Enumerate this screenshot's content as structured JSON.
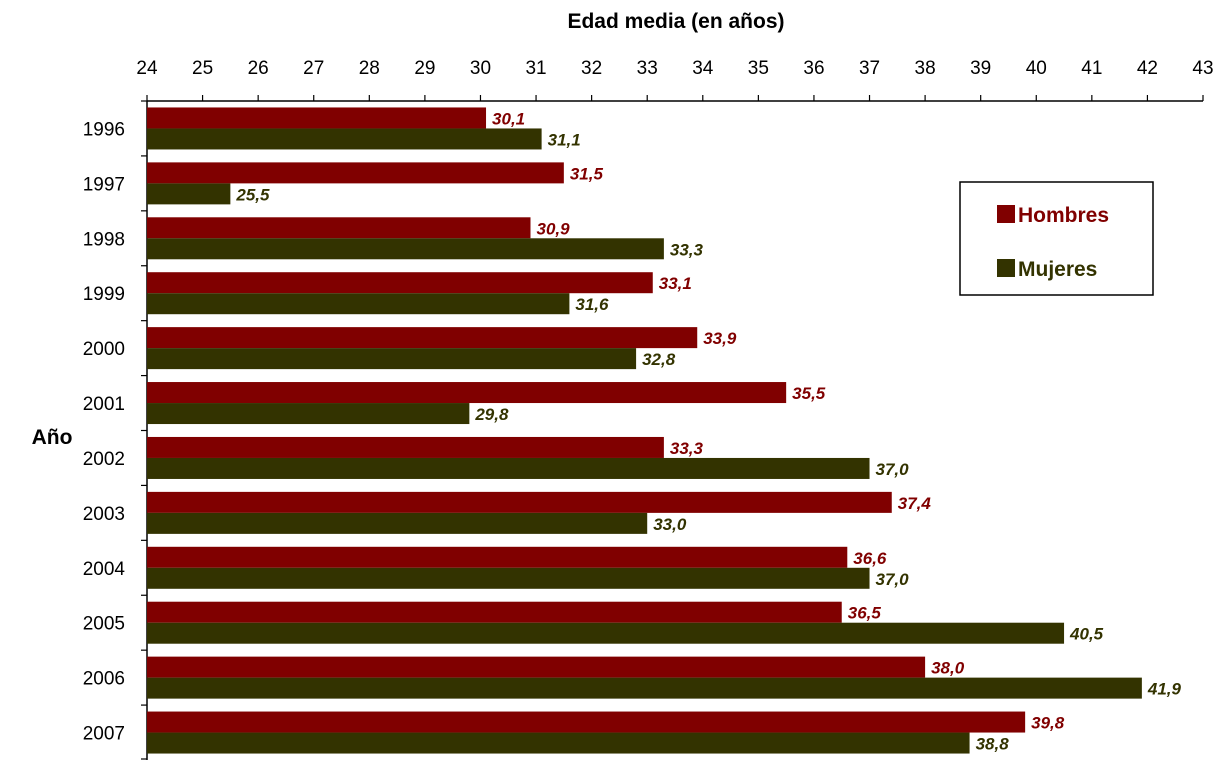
{
  "chart_data": {
    "type": "bar",
    "orientation": "horizontal",
    "xlabel": "Edad media (en años)",
    "ylabel": "Año",
    "xlim": [
      24,
      43
    ],
    "x_ticks": [
      "24",
      "25",
      "26",
      "27",
      "28",
      "29",
      "30",
      "31",
      "32",
      "33",
      "34",
      "35",
      "36",
      "37",
      "38",
      "39",
      "40",
      "41",
      "42",
      "43"
    ],
    "categories": [
      "1996",
      "1997",
      "1998",
      "1999",
      "2000",
      "2001",
      "2002",
      "2003",
      "2004",
      "2005",
      "2006",
      "2007"
    ],
    "series": [
      {
        "name": "Hombres",
        "color": "#800000",
        "values": [
          30.1,
          31.5,
          30.9,
          33.1,
          33.9,
          35.5,
          33.3,
          37.4,
          36.6,
          36.5,
          38.0,
          39.8
        ],
        "labels": [
          "30,1",
          "31,5",
          "30,9",
          "33,1",
          "33,9",
          "35,5",
          "33,3",
          "37,4",
          "36,6",
          "36,5",
          "38,0",
          "39,8"
        ]
      },
      {
        "name": "Mujeres",
        "color": "#333300",
        "values": [
          31.1,
          25.5,
          33.3,
          31.6,
          32.8,
          29.8,
          37.0,
          33.0,
          37.0,
          40.5,
          41.9,
          38.8
        ],
        "labels": [
          "31,1",
          "25,5",
          "33,3",
          "31,6",
          "32,8",
          "29,8",
          "37,0",
          "33,0",
          "37,0",
          "40,5",
          "41,9",
          "38,8"
        ]
      }
    ],
    "grid": false,
    "x_axis_position": "top",
    "legend_position": "right"
  }
}
